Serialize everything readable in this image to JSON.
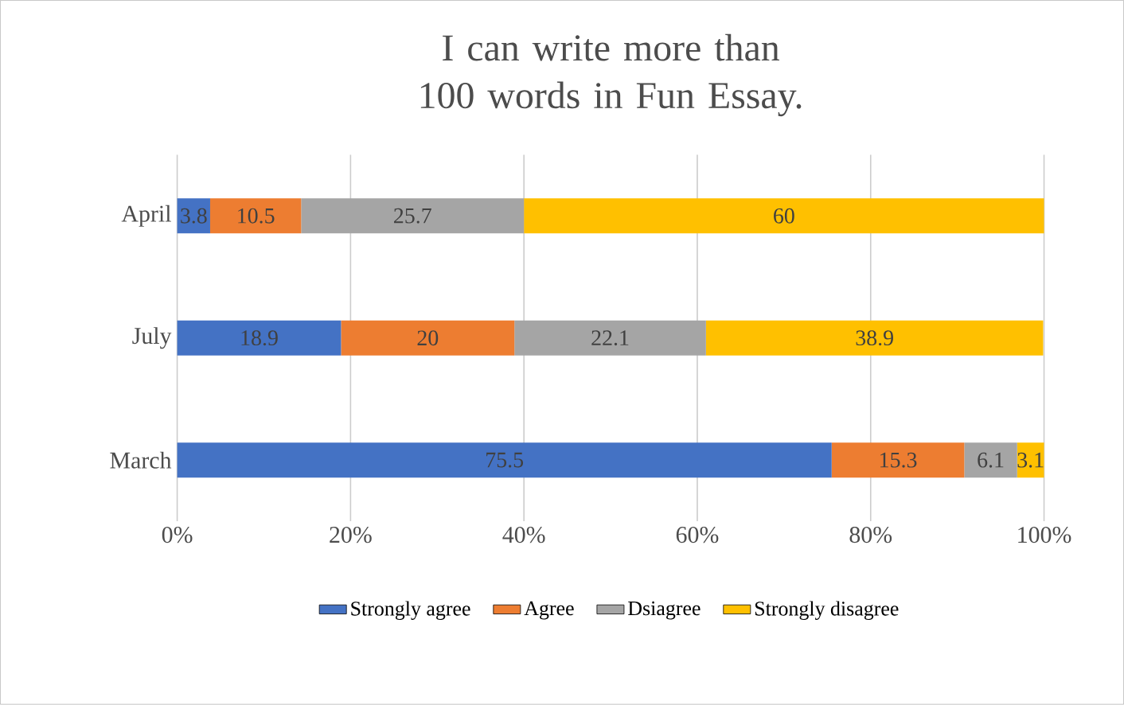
{
  "chart_data": {
    "type": "bar",
    "orientation": "horizontal",
    "stacked": true,
    "title": "I can write more than 100 words in Fun Essay.",
    "categories": [
      "April",
      "July",
      "March"
    ],
    "series": [
      {
        "name": "Strongly agree",
        "color": "#4472c4",
        "values": [
          3.8,
          18.9,
          75.5
        ]
      },
      {
        "name": "Agree",
        "color": "#ed7d31",
        "values": [
          10.5,
          20,
          15.3
        ]
      },
      {
        "name": "Dsiagree",
        "color": "#a5a5a5",
        "values": [
          25.7,
          22.1,
          6.1
        ]
      },
      {
        "name": "Strongly disagree",
        "color": "#ffc000",
        "values": [
          60,
          38.9,
          3.1
        ]
      }
    ],
    "xlim": [
      0,
      100
    ],
    "xticks": [
      {
        "value": 0,
        "label": "0%"
      },
      {
        "value": 20,
        "label": "20%"
      },
      {
        "value": 40,
        "label": "40%"
      },
      {
        "value": 60,
        "label": "60%"
      },
      {
        "value": 80,
        "label": "80%"
      },
      {
        "value": 100,
        "label": "100%"
      }
    ],
    "grid": "x",
    "legend": "bottom",
    "data_labels": true
  }
}
